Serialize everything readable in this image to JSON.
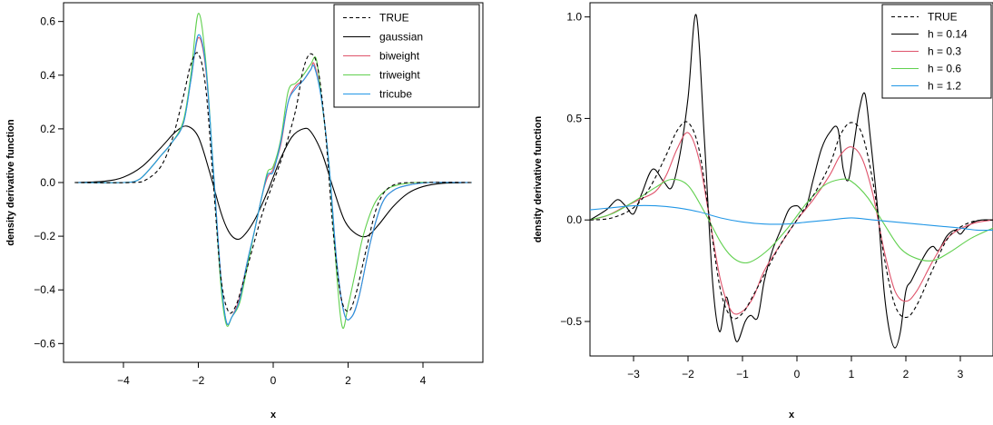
{
  "chart_data": [
    {
      "type": "line",
      "xlabel": "x",
      "ylabel": "density derivative function",
      "xlim": [
        -5.6,
        5.6
      ],
      "ylim": [
        -0.67,
        0.67
      ],
      "xticks": [
        -4,
        -2,
        0,
        2,
        4
      ],
      "yticks": [
        -0.6,
        -0.4,
        -0.2,
        0.0,
        0.2,
        0.4,
        0.6
      ],
      "xtick_labels": [
        "−4",
        "−2",
        "0",
        "2",
        "4"
      ],
      "ytick_labels": [
        "−0.6",
        "−0.4",
        "−0.2",
        "0.0",
        "0.2",
        "0.4",
        "0.6"
      ],
      "legend_position": "top-right",
      "series": [
        {
          "name": "TRUE",
          "color": "#000000",
          "dashed": true,
          "x": [
            -5.3,
            -3.8,
            -3.4,
            -3.0,
            -2.7,
            -2.4,
            -2.2,
            -2.0,
            -1.8,
            -1.6,
            -1.4,
            -1.2,
            -1.0,
            -0.8,
            -0.6,
            -0.3,
            0.0,
            0.3,
            0.6,
            0.8,
            1.0,
            1.2,
            1.4,
            1.6,
            1.8,
            2.0,
            2.2,
            2.5,
            2.8,
            3.2,
            4.0,
            5.3
          ],
          "y": [
            0.0,
            0.0,
            0.01,
            0.06,
            0.16,
            0.32,
            0.44,
            0.48,
            0.35,
            0.0,
            -0.35,
            -0.48,
            -0.46,
            -0.37,
            -0.27,
            -0.12,
            0.0,
            0.12,
            0.27,
            0.42,
            0.48,
            0.42,
            0.18,
            -0.18,
            -0.42,
            -0.48,
            -0.42,
            -0.24,
            -0.08,
            -0.01,
            0.0,
            0.0
          ]
        },
        {
          "name": "gaussian",
          "color": "#000000",
          "dashed": false,
          "x": [
            -5.3,
            -4.5,
            -4.0,
            -3.5,
            -3.0,
            -2.6,
            -2.3,
            -2.0,
            -1.7,
            -1.4,
            -1.2,
            -1.0,
            -0.8,
            -0.5,
            -0.2,
            0.0,
            0.2,
            0.5,
            0.8,
            1.0,
            1.3,
            1.6,
            1.9,
            2.2,
            2.5,
            2.8,
            3.2,
            3.6,
            4.0,
            4.5,
            5.3
          ],
          "y": [
            0.0,
            0.005,
            0.02,
            0.06,
            0.13,
            0.19,
            0.21,
            0.17,
            0.04,
            -0.11,
            -0.18,
            -0.21,
            -0.2,
            -0.14,
            -0.05,
            0.02,
            0.09,
            0.17,
            0.2,
            0.19,
            0.11,
            -0.02,
            -0.14,
            -0.19,
            -0.2,
            -0.16,
            -0.09,
            -0.04,
            -0.015,
            -0.003,
            0.0
          ]
        },
        {
          "name": "biweight",
          "color": "#DF536B",
          "dashed": false,
          "x": [
            -5.3,
            -4.0,
            -3.6,
            -3.3,
            -3.0,
            -2.7,
            -2.4,
            -2.2,
            -2.0,
            -1.8,
            -1.6,
            -1.4,
            -1.25,
            -1.1,
            -0.9,
            -0.7,
            -0.5,
            -0.3,
            -0.15,
            0.0,
            0.2,
            0.4,
            0.6,
            0.8,
            1.0,
            1.1,
            1.3,
            1.5,
            1.7,
            1.9,
            2.1,
            2.3,
            2.6,
            2.9,
            3.2,
            3.6,
            4.2,
            5.3
          ],
          "y": [
            0.0,
            0.0,
            0.01,
            0.05,
            0.1,
            0.15,
            0.22,
            0.38,
            0.54,
            0.42,
            0.05,
            -0.35,
            -0.52,
            -0.5,
            -0.43,
            -0.3,
            -0.18,
            -0.05,
            0.02,
            0.05,
            0.14,
            0.3,
            0.36,
            0.38,
            0.42,
            0.44,
            0.3,
            0.05,
            -0.3,
            -0.49,
            -0.5,
            -0.42,
            -0.22,
            -0.08,
            -0.03,
            -0.01,
            0.0,
            0.0
          ]
        },
        {
          "name": "triweight",
          "color": "#61D04F",
          "dashed": false,
          "x": [
            -5.3,
            -4.0,
            -3.6,
            -3.3,
            -3.0,
            -2.7,
            -2.4,
            -2.2,
            -2.0,
            -1.8,
            -1.6,
            -1.4,
            -1.25,
            -1.1,
            -0.9,
            -0.7,
            -0.5,
            -0.3,
            -0.15,
            0.0,
            0.2,
            0.4,
            0.6,
            0.8,
            1.0,
            1.15,
            1.3,
            1.5,
            1.7,
            1.85,
            2.0,
            2.2,
            2.4,
            2.7,
            3.0,
            3.3,
            3.8,
            4.3,
            5.3
          ],
          "y": [
            0.0,
            0.0,
            0.01,
            0.05,
            0.1,
            0.15,
            0.23,
            0.4,
            0.63,
            0.45,
            0.05,
            -0.38,
            -0.53,
            -0.5,
            -0.45,
            -0.32,
            -0.18,
            -0.05,
            0.04,
            0.06,
            0.16,
            0.34,
            0.37,
            0.4,
            0.44,
            0.46,
            0.3,
            0.05,
            -0.35,
            -0.54,
            -0.46,
            -0.33,
            -0.2,
            -0.08,
            -0.03,
            -0.01,
            0.0,
            0.0,
            0.0
          ]
        },
        {
          "name": "tricube",
          "color": "#2297E6",
          "dashed": false,
          "x": [
            -5.3,
            -4.0,
            -3.6,
            -3.3,
            -3.0,
            -2.7,
            -2.4,
            -2.2,
            -2.0,
            -1.8,
            -1.6,
            -1.4,
            -1.25,
            -1.1,
            -0.9,
            -0.7,
            -0.5,
            -0.3,
            -0.15,
            0.0,
            0.2,
            0.4,
            0.6,
            0.8,
            1.0,
            1.1,
            1.3,
            1.5,
            1.7,
            1.9,
            2.1,
            2.3,
            2.6,
            2.9,
            3.2,
            3.6,
            4.2,
            5.3
          ],
          "y": [
            0.0,
            0.0,
            0.01,
            0.05,
            0.1,
            0.15,
            0.22,
            0.38,
            0.55,
            0.43,
            0.05,
            -0.35,
            -0.52,
            -0.5,
            -0.44,
            -0.3,
            -0.18,
            -0.05,
            0.03,
            0.04,
            0.15,
            0.3,
            0.35,
            0.38,
            0.42,
            0.43,
            0.3,
            0.05,
            -0.3,
            -0.49,
            -0.5,
            -0.42,
            -0.22,
            -0.08,
            -0.03,
            -0.01,
            0.0,
            0.0
          ]
        }
      ]
    },
    {
      "type": "line",
      "xlabel": "x",
      "ylabel": "density derivative function",
      "xlim": [
        -3.8,
        3.6
      ],
      "ylim": [
        -0.67,
        1.07
      ],
      "xticks": [
        -3,
        -2,
        -1,
        0,
        1,
        2,
        3
      ],
      "yticks": [
        -0.5,
        0.0,
        0.5,
        1.0
      ],
      "xtick_labels": [
        "−3",
        "−2",
        "−1",
        "0",
        "1",
        "2",
        "3"
      ],
      "ytick_labels": [
        "−0.5",
        "0.0",
        "0.5",
        "1.0"
      ],
      "legend_position": "top-right",
      "series": [
        {
          "name": "TRUE",
          "color": "#000000",
          "dashed": true,
          "x": [
            -3.8,
            -3.4,
            -3.0,
            -2.7,
            -2.4,
            -2.2,
            -2.0,
            -1.8,
            -1.6,
            -1.4,
            -1.2,
            -1.0,
            -0.8,
            -0.6,
            -0.3,
            0.0,
            0.3,
            0.6,
            0.8,
            1.0,
            1.2,
            1.4,
            1.6,
            1.8,
            2.0,
            2.2,
            2.5,
            2.8,
            3.2,
            3.6
          ],
          "y": [
            0.0,
            0.01,
            0.06,
            0.16,
            0.32,
            0.44,
            0.48,
            0.35,
            0.0,
            -0.35,
            -0.48,
            -0.46,
            -0.37,
            -0.27,
            -0.12,
            0.0,
            0.12,
            0.27,
            0.42,
            0.48,
            0.42,
            0.18,
            -0.18,
            -0.42,
            -0.48,
            -0.42,
            -0.24,
            -0.08,
            -0.01,
            0.0
          ]
        },
        {
          "name": "h = 0.14",
          "color": "#000000",
          "dashed": false,
          "x": [
            -3.8,
            -3.5,
            -3.3,
            -3.15,
            -3.0,
            -2.85,
            -2.65,
            -2.45,
            -2.3,
            -2.15,
            -2.0,
            -1.85,
            -1.7,
            -1.55,
            -1.42,
            -1.3,
            -1.2,
            -1.1,
            -0.95,
            -0.85,
            -0.72,
            -0.6,
            -0.45,
            -0.3,
            -0.15,
            0.0,
            0.15,
            0.3,
            0.45,
            0.6,
            0.75,
            0.85,
            0.95,
            1.05,
            1.15,
            1.25,
            1.35,
            1.5,
            1.6,
            1.7,
            1.8,
            1.9,
            2.0,
            2.1,
            2.25,
            2.4,
            2.5,
            2.6,
            2.75,
            2.9,
            3.0,
            3.1,
            3.25,
            3.4,
            3.6
          ],
          "y": [
            0.0,
            0.05,
            0.1,
            0.07,
            0.03,
            0.13,
            0.25,
            0.19,
            0.16,
            0.32,
            0.6,
            1.01,
            0.4,
            -0.3,
            -0.55,
            -0.38,
            -0.5,
            -0.6,
            -0.5,
            -0.47,
            -0.48,
            -0.3,
            -0.15,
            -0.05,
            0.05,
            0.07,
            0.05,
            0.2,
            0.35,
            0.43,
            0.45,
            0.25,
            0.2,
            0.38,
            0.55,
            0.62,
            0.4,
            0.0,
            -0.35,
            -0.55,
            -0.63,
            -0.55,
            -0.35,
            -0.3,
            -0.22,
            -0.15,
            -0.13,
            -0.15,
            -0.08,
            -0.05,
            -0.07,
            -0.04,
            -0.01,
            0.0,
            0.0
          ]
        },
        {
          "name": "h = 0.3",
          "color": "#DF536B",
          "dashed": false,
          "x": [
            -3.8,
            -3.5,
            -3.2,
            -2.9,
            -2.6,
            -2.4,
            -2.2,
            -2.0,
            -1.8,
            -1.6,
            -1.4,
            -1.2,
            -1.0,
            -0.8,
            -0.6,
            -0.3,
            0.0,
            0.3,
            0.6,
            0.8,
            1.0,
            1.2,
            1.4,
            1.6,
            1.8,
            2.0,
            2.2,
            2.5,
            2.8,
            3.2,
            3.6
          ],
          "y": [
            0.0,
            0.02,
            0.06,
            0.1,
            0.14,
            0.22,
            0.35,
            0.43,
            0.3,
            0.0,
            -0.3,
            -0.45,
            -0.45,
            -0.38,
            -0.25,
            -0.12,
            0.0,
            0.1,
            0.22,
            0.32,
            0.36,
            0.3,
            0.12,
            -0.15,
            -0.35,
            -0.4,
            -0.35,
            -0.2,
            -0.08,
            -0.02,
            0.0
          ]
        },
        {
          "name": "h = 0.6",
          "color": "#61D04F",
          "dashed": false,
          "x": [
            -3.8,
            -3.4,
            -3.0,
            -2.6,
            -2.3,
            -2.0,
            -1.7,
            -1.4,
            -1.2,
            -1.0,
            -0.8,
            -0.5,
            -0.2,
            0.0,
            0.2,
            0.5,
            0.8,
            1.0,
            1.3,
            1.6,
            1.9,
            2.2,
            2.5,
            2.8,
            3.2,
            3.6
          ],
          "y": [
            0.0,
            0.03,
            0.09,
            0.16,
            0.2,
            0.17,
            0.04,
            -0.11,
            -0.18,
            -0.21,
            -0.2,
            -0.14,
            -0.05,
            0.02,
            0.09,
            0.17,
            0.2,
            0.19,
            0.11,
            -0.02,
            -0.14,
            -0.19,
            -0.2,
            -0.16,
            -0.09,
            -0.04
          ]
        },
        {
          "name": "h = 1.2",
          "color": "#2297E6",
          "dashed": false,
          "x": [
            -3.8,
            -3.4,
            -3.0,
            -2.6,
            -2.2,
            -1.8,
            -1.4,
            -1.0,
            -0.6,
            -0.2,
            0.2,
            0.6,
            1.0,
            1.4,
            1.8,
            2.2,
            2.6,
            3.0,
            3.3,
            3.6
          ],
          "y": [
            0.05,
            0.06,
            0.07,
            0.07,
            0.06,
            0.04,
            0.01,
            -0.01,
            -0.02,
            -0.02,
            -0.01,
            0.0,
            0.01,
            0.0,
            -0.01,
            -0.02,
            -0.03,
            -0.04,
            -0.05,
            -0.05
          ]
        }
      ]
    }
  ]
}
